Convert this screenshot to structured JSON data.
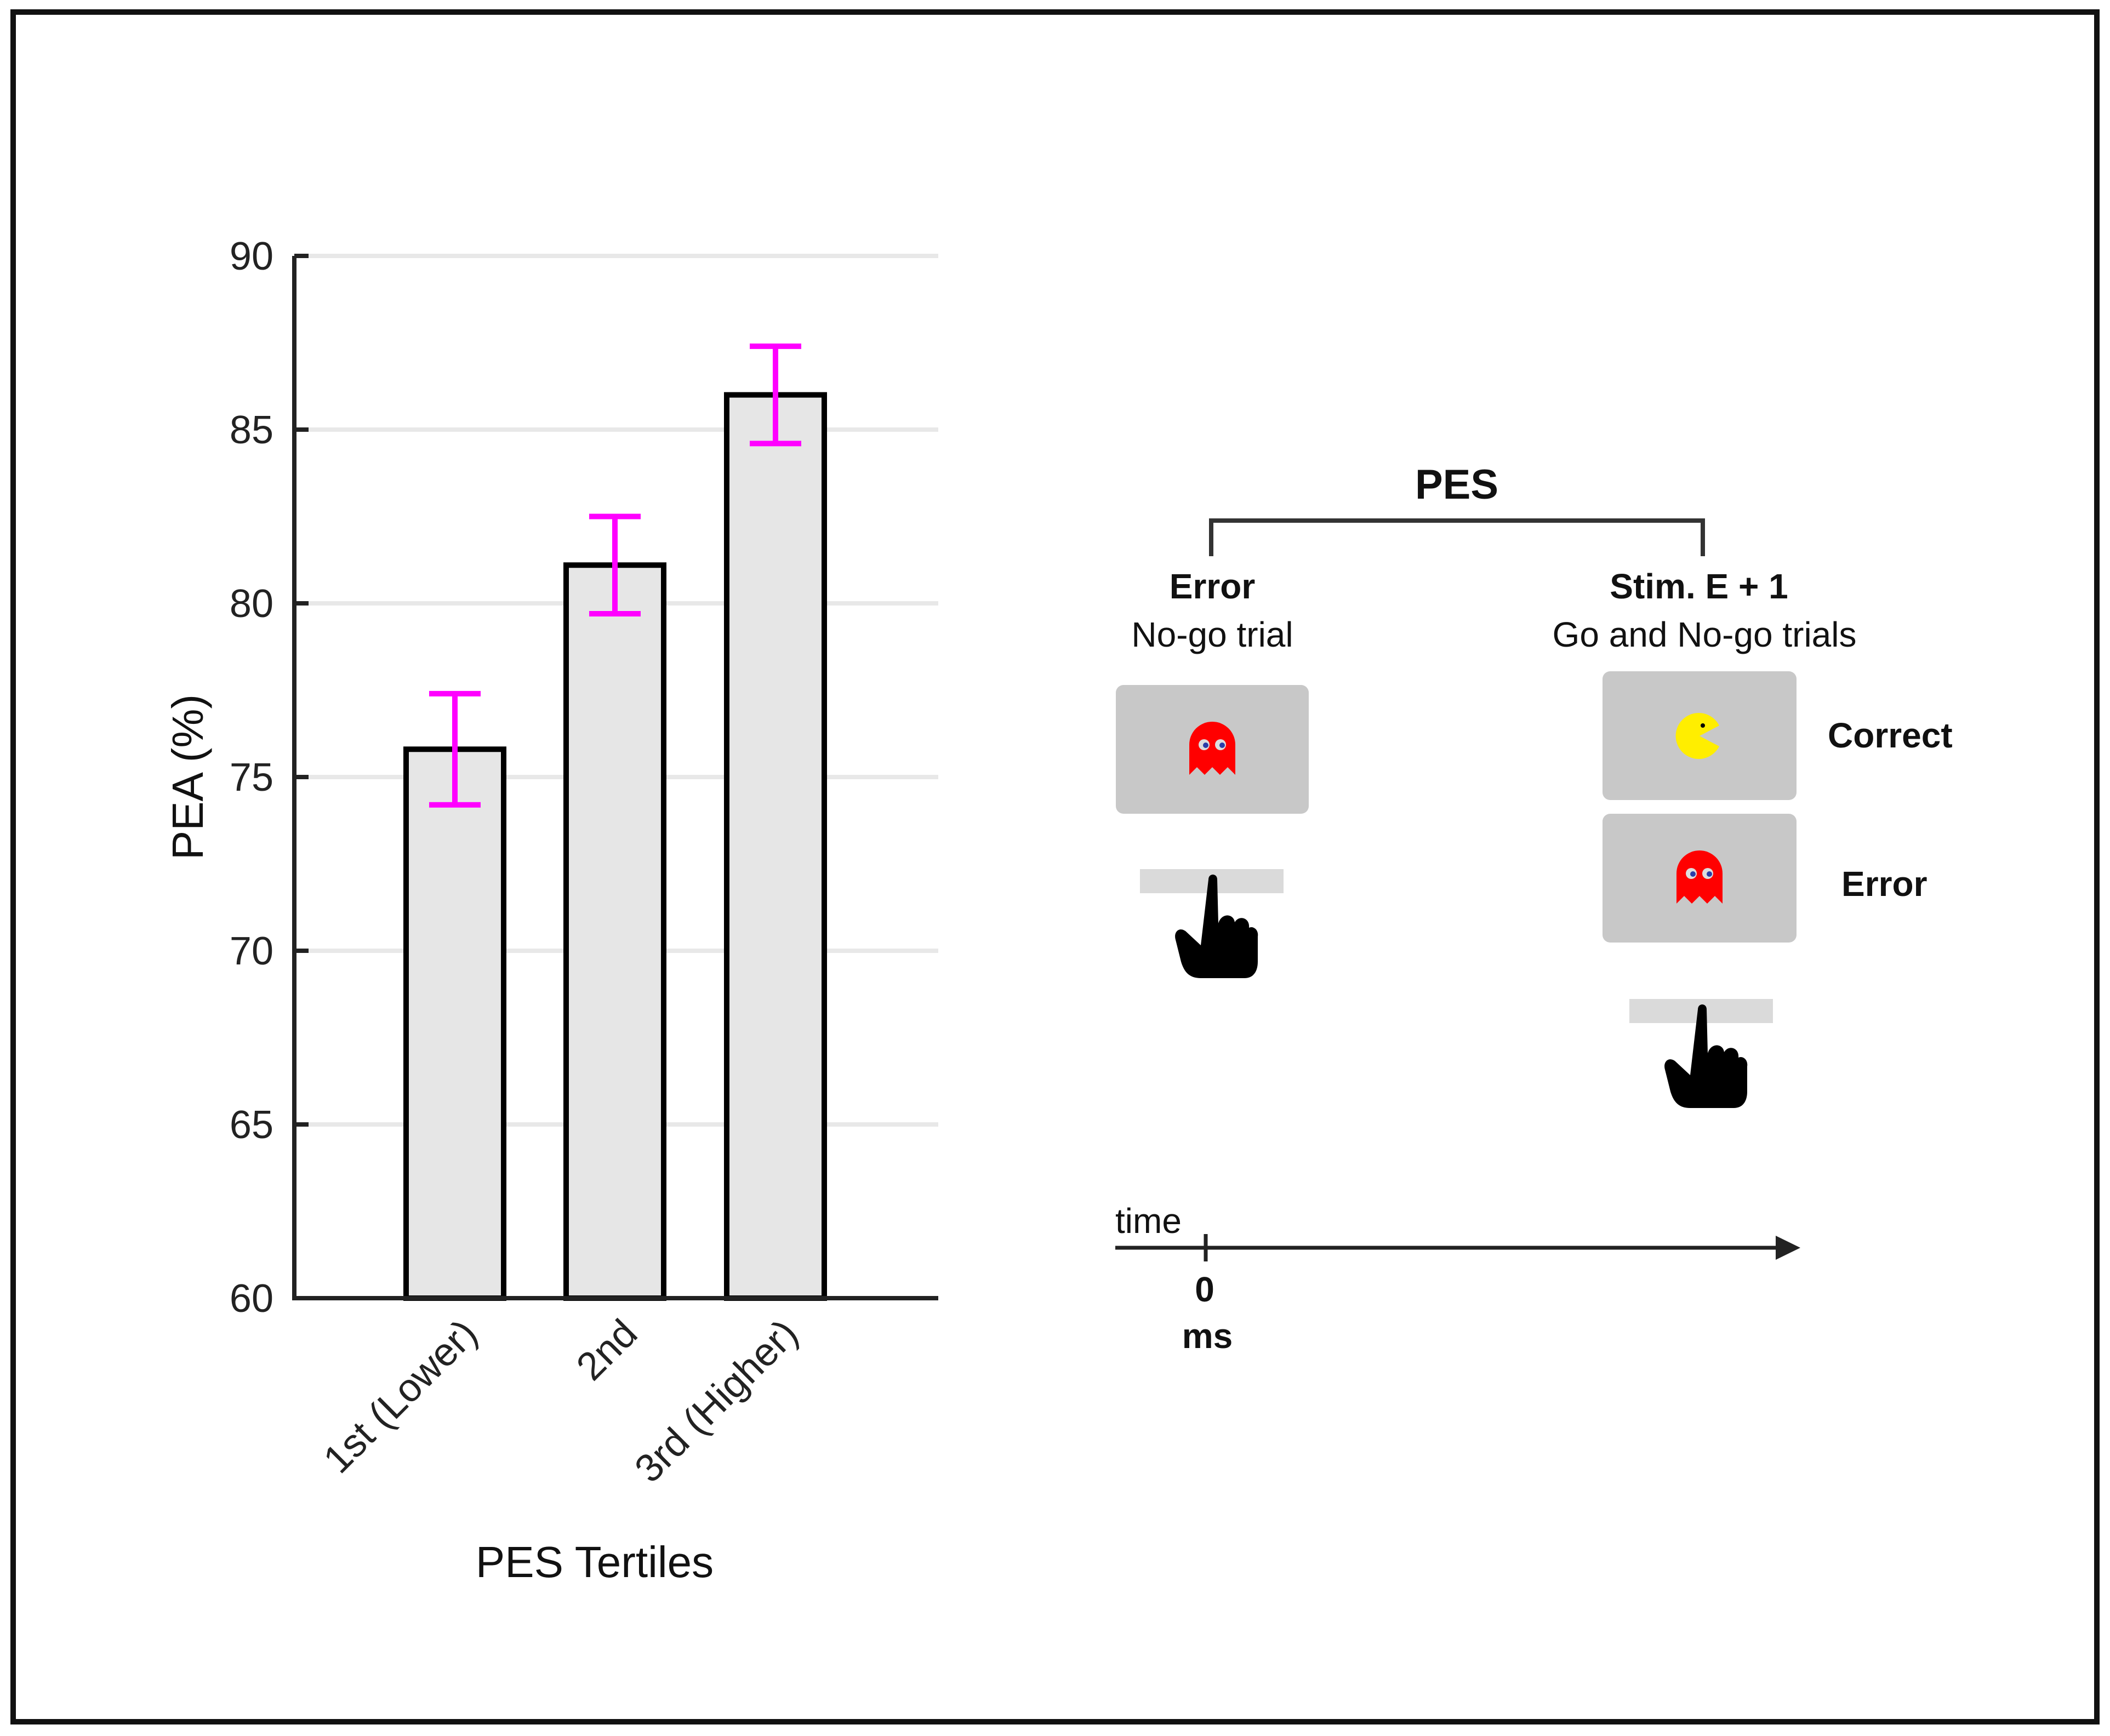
{
  "chart_data": {
    "type": "bar",
    "categories": [
      "1st (Lower)",
      "2nd",
      "3rd (Higher)"
    ],
    "values": [
      75.8,
      81.1,
      86.0
    ],
    "error_bars": [
      {
        "low": 74.2,
        "high": 77.4
      },
      {
        "low": 79.7,
        "high": 82.5
      },
      {
        "low": 84.6,
        "high": 87.4
      }
    ],
    "xlabel": "PES Tertiles",
    "ylabel": "PEA (%)",
    "ylim": [
      60,
      90
    ],
    "yticks": [
      60,
      65,
      70,
      75,
      80,
      85,
      90
    ],
    "grid": true,
    "colors": {
      "bar_fill": "#e6e6e6",
      "bar_edge": "#000000",
      "error_bar": "#ff00ff",
      "grid": "#e8e8e8"
    }
  },
  "diagram": {
    "pes_label": "PES",
    "left": {
      "title": "Error",
      "subtitle": "No-go trial",
      "stimulus_icon": "ghost-icon",
      "response_icon": "pointing-hand-icon"
    },
    "right": {
      "title": "Stim. E + 1",
      "subtitle": "Go and No-go trials",
      "outcomes": [
        {
          "label": "Correct",
          "icon": "pacman-icon"
        },
        {
          "label": "Error",
          "icon": "ghost-icon"
        }
      ],
      "response_icon": "pointing-hand-icon"
    },
    "timeline": {
      "time_label": "time",
      "zero_label": "0",
      "unit_label": "ms"
    },
    "colors": {
      "screen_bg": "#c8c8c8",
      "key_bar": "#dadada",
      "ghost": "#ff0000",
      "pacman": "#ffee00",
      "bracket": "#333333"
    }
  }
}
